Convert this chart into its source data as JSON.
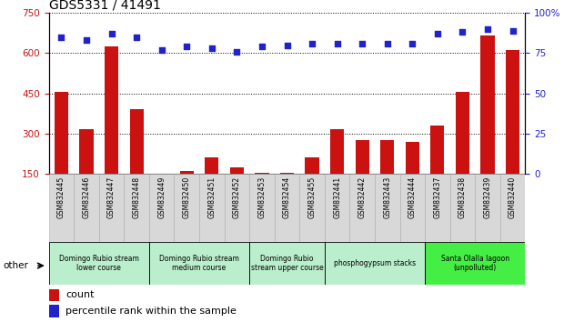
{
  "title": "GDS5331 / 41491",
  "samples": [
    "GSM832445",
    "GSM832446",
    "GSM832447",
    "GSM832448",
    "GSM832449",
    "GSM832450",
    "GSM832451",
    "GSM832452",
    "GSM832453",
    "GSM832454",
    "GSM832455",
    "GSM832441",
    "GSM832442",
    "GSM832443",
    "GSM832444",
    "GSM832437",
    "GSM832438",
    "GSM832439",
    "GSM832440"
  ],
  "counts": [
    455,
    315,
    625,
    390,
    130,
    160,
    210,
    175,
    155,
    155,
    210,
    315,
    275,
    275,
    270,
    330,
    455,
    665,
    610
  ],
  "percentiles": [
    85,
    83,
    87,
    85,
    77,
    79,
    78,
    76,
    79,
    80,
    81,
    81,
    81,
    81,
    81,
    87,
    88,
    90,
    89
  ],
  "groups": [
    {
      "label": "Domingo Rubio stream\nlower course",
      "start": 0,
      "end": 4
    },
    {
      "label": "Domingo Rubio stream\nmedium course",
      "start": 4,
      "end": 8
    },
    {
      "label": "Domingo Rubio\nstream upper course",
      "start": 8,
      "end": 11
    },
    {
      "label": "phosphogypsum stacks",
      "start": 11,
      "end": 15
    },
    {
      "label": "Santa Olalla lagoon\n(unpolluted)",
      "start": 15,
      "end": 19
    }
  ],
  "group_colors": [
    "#bbeecc",
    "#bbeecc",
    "#bbeecc",
    "#bbeecc",
    "#44ee44"
  ],
  "ylim_left": [
    150,
    750
  ],
  "ylim_right": [
    0,
    100
  ],
  "yticks_left": [
    150,
    300,
    450,
    600,
    750
  ],
  "yticks_right": [
    0,
    25,
    50,
    75,
    100
  ],
  "bar_color": "#cc1111",
  "scatter_color": "#2222cc",
  "title_fontsize": 10,
  "bar_width": 0.55
}
